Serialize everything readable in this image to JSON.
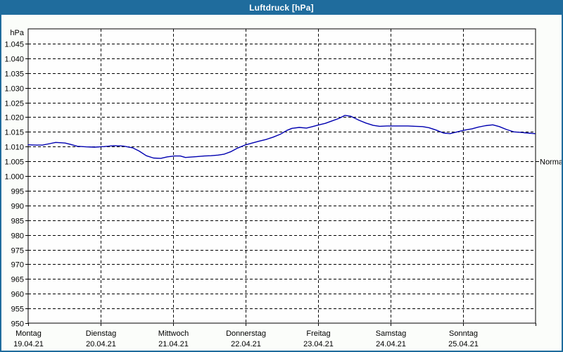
{
  "window": {
    "title": "Luftdruck [hPa]"
  },
  "colors": {
    "titlebar": "#1f6c9d",
    "window_border": "#1f6c9d",
    "content_bg": "#fbfdfa",
    "plot_bg": "#fefefe",
    "grid": "#000000",
    "axis_text": "#000000",
    "title_text": "#ffffff",
    "curve": "#0000b0"
  },
  "chart_data": {
    "type": "line",
    "title": "Luftdruck [hPa]",
    "y_unit_label": "hPa",
    "ylim": [
      950,
      1050
    ],
    "y_tick_step": 5,
    "grid": "dashed",
    "legend": "none",
    "y_ticks": [
      {
        "value": 1045,
        "label": "1.045"
      },
      {
        "value": 1040,
        "label": "1.040"
      },
      {
        "value": 1035,
        "label": "1.035"
      },
      {
        "value": 1030,
        "label": "1.030"
      },
      {
        "value": 1025,
        "label": "1.025"
      },
      {
        "value": 1020,
        "label": "1.020"
      },
      {
        "value": 1015,
        "label": "1.015"
      },
      {
        "value": 1010,
        "label": "1.010"
      },
      {
        "value": 1005,
        "label": "1.005"
      },
      {
        "value": 1000,
        "label": "1.000"
      },
      {
        "value": 995,
        "label": "995"
      },
      {
        "value": 990,
        "label": "990"
      },
      {
        "value": 985,
        "label": "985"
      },
      {
        "value": 980,
        "label": "980"
      },
      {
        "value": 975,
        "label": "975"
      },
      {
        "value": 970,
        "label": "970"
      },
      {
        "value": 965,
        "label": "965"
      },
      {
        "value": 960,
        "label": "960"
      },
      {
        "value": 955,
        "label": "955"
      },
      {
        "value": 950,
        "label": "950"
      }
    ],
    "x_range_days": [
      0,
      7
    ],
    "x_days": [
      {
        "name": "Montag",
        "date": "19.04.21"
      },
      {
        "name": "Dienstag",
        "date": "20.04.21"
      },
      {
        "name": "Mittwoch",
        "date": "21.04.21"
      },
      {
        "name": "Donnerstag",
        "date": "22.04.21"
      },
      {
        "name": "Freitag",
        "date": "23.04.21"
      },
      {
        "name": "Samstag",
        "date": "24.04.21"
      },
      {
        "name": "Sonntag",
        "date": "25.04.21"
      }
    ],
    "normal_marker": {
      "label": "Normal",
      "value": 1005
    },
    "series": [
      {
        "name": "Luftdruck",
        "unit": "hPa",
        "color": "#0000b0",
        "points": [
          [
            0.0,
            1010.6
          ],
          [
            0.1,
            1010.5
          ],
          [
            0.2,
            1010.5
          ],
          [
            0.3,
            1011.0
          ],
          [
            0.38,
            1011.4
          ],
          [
            0.46,
            1011.3
          ],
          [
            0.51,
            1011.2
          ],
          [
            0.58,
            1010.8
          ],
          [
            0.68,
            1010.1
          ],
          [
            0.8,
            1009.9
          ],
          [
            0.92,
            1009.8
          ],
          [
            1.05,
            1010.0
          ],
          [
            1.18,
            1010.3
          ],
          [
            1.31,
            1010.2
          ],
          [
            1.44,
            1009.6
          ],
          [
            1.53,
            1008.5
          ],
          [
            1.63,
            1006.9
          ],
          [
            1.73,
            1006.1
          ],
          [
            1.83,
            1006.0
          ],
          [
            1.92,
            1006.5
          ],
          [
            2.02,
            1006.8
          ],
          [
            2.1,
            1006.8
          ],
          [
            2.17,
            1006.3
          ],
          [
            2.23,
            1006.4
          ],
          [
            2.33,
            1006.6
          ],
          [
            2.43,
            1006.8
          ],
          [
            2.52,
            1006.9
          ],
          [
            2.62,
            1007.1
          ],
          [
            2.7,
            1007.4
          ],
          [
            2.8,
            1008.3
          ],
          [
            2.89,
            1009.5
          ],
          [
            2.99,
            1010.5
          ],
          [
            3.09,
            1011.2
          ],
          [
            3.18,
            1011.8
          ],
          [
            3.28,
            1012.4
          ],
          [
            3.38,
            1013.2
          ],
          [
            3.48,
            1014.2
          ],
          [
            3.57,
            1015.5
          ],
          [
            3.64,
            1016.2
          ],
          [
            3.74,
            1016.5
          ],
          [
            3.84,
            1016.3
          ],
          [
            3.91,
            1016.7
          ],
          [
            4.0,
            1017.3
          ],
          [
            4.1,
            1017.9
          ],
          [
            4.19,
            1018.7
          ],
          [
            4.29,
            1019.6
          ],
          [
            4.37,
            1020.6
          ],
          [
            4.45,
            1020.3
          ],
          [
            4.56,
            1019.0
          ],
          [
            4.66,
            1018.0
          ],
          [
            4.76,
            1017.2
          ],
          [
            4.85,
            1016.9
          ],
          [
            4.95,
            1017.0
          ],
          [
            5.05,
            1017.0
          ],
          [
            5.15,
            1017.0
          ],
          [
            5.24,
            1017.0
          ],
          [
            5.34,
            1016.9
          ],
          [
            5.44,
            1016.8
          ],
          [
            5.53,
            1016.4
          ],
          [
            5.63,
            1015.6
          ],
          [
            5.73,
            1014.6
          ],
          [
            5.82,
            1014.4
          ],
          [
            5.92,
            1015.0
          ],
          [
            6.02,
            1015.6
          ],
          [
            6.12,
            1016.0
          ],
          [
            6.21,
            1016.6
          ],
          [
            6.31,
            1017.1
          ],
          [
            6.41,
            1017.4
          ],
          [
            6.5,
            1016.8
          ],
          [
            6.6,
            1015.8
          ],
          [
            6.7,
            1015.0
          ],
          [
            6.8,
            1014.8
          ],
          [
            6.89,
            1014.6
          ],
          [
            6.99,
            1014.4
          ]
        ]
      }
    ]
  }
}
